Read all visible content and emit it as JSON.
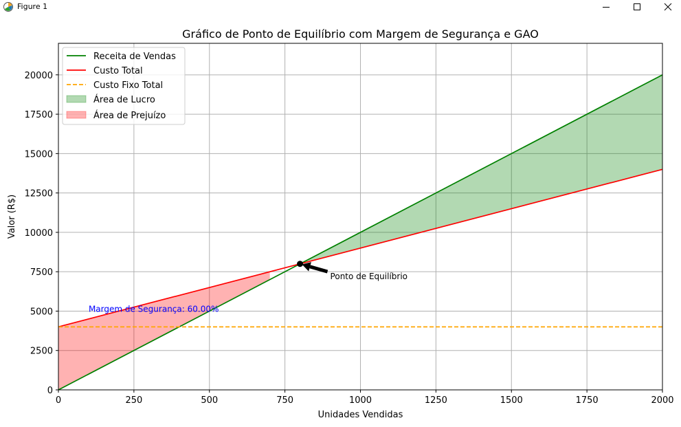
{
  "window": {
    "title": "Figure 1",
    "icon": "matplotlib-figure-icon",
    "controls": [
      "minimize-icon",
      "maximize-icon",
      "close-icon"
    ]
  },
  "colors": {
    "revenue": "#008000",
    "total_cost": "#ff0000",
    "fixed_cost": "#ffa500",
    "profit_fill": "#008000",
    "loss_fill": "#ff0000",
    "margin_text": "#0000ff",
    "grid": "#b0b0b0"
  },
  "chart_data": {
    "type": "line",
    "title": "Gráfico de Ponto de Equilíbrio com Margem de Segurança e GAO",
    "xlabel": "Unidades Vendidas",
    "ylabel": "Valor (R$)",
    "xlim": [
      0,
      2000
    ],
    "ylim": [
      0,
      22000
    ],
    "xticks": [
      0,
      250,
      500,
      750,
      1000,
      1250,
      1500,
      1750,
      2000
    ],
    "yticks": [
      0,
      2500,
      5000,
      7500,
      10000,
      12500,
      15000,
      17500,
      20000
    ],
    "grid": true,
    "legend_position": "top-left",
    "series": [
      {
        "name": "Receita de Vendas",
        "x": [
          0,
          2000
        ],
        "values": [
          0,
          20000
        ],
        "style": "solid"
      },
      {
        "name": "Custo Total",
        "x": [
          0,
          2000
        ],
        "values": [
          4000,
          14000
        ],
        "style": "solid"
      },
      {
        "name": "Custo Fixo Total",
        "x": [
          0,
          2000
        ],
        "values": [
          4000,
          4000
        ],
        "style": "dashed"
      }
    ],
    "areas": [
      {
        "name": "Área de Lucro",
        "x": [
          800,
          2000
        ],
        "lower": "Custo Total",
        "upper": "Receita de Vendas"
      },
      {
        "name": "Área de Prejuízo",
        "x": [
          0,
          700
        ],
        "lower": "Receita de Vendas",
        "upper": "Custo Total"
      }
    ],
    "break_even": {
      "x": 800,
      "y": 8000,
      "label": "Ponto de Equilíbrio",
      "label_x": 900,
      "label_y": 7200
    },
    "margin_annotation": {
      "text": "Margem de Segurança: 60.00%",
      "x": 100,
      "y": 5000
    }
  }
}
